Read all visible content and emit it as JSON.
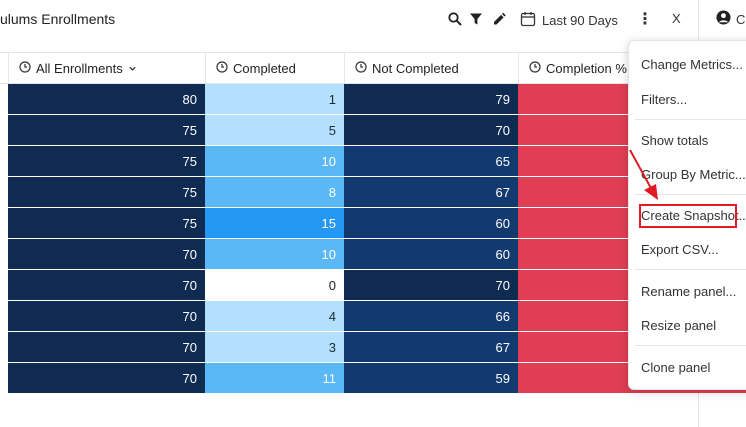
{
  "header": {
    "title": "ulums Enrollments",
    "date_range": "Last 90 Days",
    "kebab": "⋮",
    "close": "X",
    "user_initial": "C"
  },
  "table": {
    "columns": [
      {
        "label": "All Enrollments",
        "has_sort": true
      },
      {
        "label": "Completed",
        "has_sort": false
      },
      {
        "label": "Not Completed",
        "has_sort": false
      },
      {
        "label": "Completion %",
        "has_sort": false
      }
    ],
    "rows": [
      {
        "all": "80",
        "completed": "1",
        "not_completed": "79"
      },
      {
        "all": "75",
        "completed": "5",
        "not_completed": "70"
      },
      {
        "all": "75",
        "completed": "10",
        "not_completed": "65"
      },
      {
        "all": "75",
        "completed": "8",
        "not_completed": "67"
      },
      {
        "all": "75",
        "completed": "15",
        "not_completed": "60"
      },
      {
        "all": "70",
        "completed": "10",
        "not_completed": "60"
      },
      {
        "all": "70",
        "completed": "0",
        "not_completed": "70"
      },
      {
        "all": "70",
        "completed": "4",
        "not_completed": "66"
      },
      {
        "all": "70",
        "completed": "3",
        "not_completed": "67"
      },
      {
        "all": "70",
        "completed": "11",
        "not_completed": "59"
      }
    ],
    "colors": {
      "all_bg": "#0f2b52",
      "completion_bg": "#e03e52",
      "completed_light": "#b3e0fc",
      "completed_mid": "#5ab8f7",
      "completed_strong": "#2498f3",
      "completed_zero": "#ffffff",
      "not_completed_dark": "#0f2b52",
      "not_completed_mid": "#133a70"
    }
  },
  "menu": {
    "items": [
      "Change Metrics...",
      "Filters...",
      "Show totals",
      "Group By Metric...",
      "Create Snapshot...",
      "Export CSV...",
      "Rename panel...",
      "Resize panel",
      "Clone panel"
    ]
  },
  "annotation": {
    "arrow_color": "#e01b24"
  }
}
